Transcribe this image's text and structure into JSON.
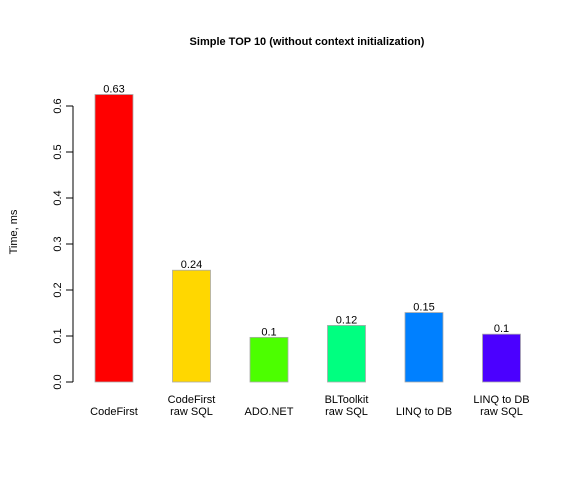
{
  "chart_data": {
    "type": "bar",
    "title": "Simple TOP 10 (without context initialization)",
    "xlabel": "",
    "ylabel": "Time, ms",
    "ylim": [
      0,
      0.65
    ],
    "yticks": [
      0.0,
      0.1,
      0.2,
      0.3,
      0.4,
      0.5,
      0.6
    ],
    "ytick_labels": [
      "0.0",
      "0.1",
      "0.2",
      "0.3",
      "0.4",
      "0.5",
      "0.6"
    ],
    "grid": false,
    "categories": [
      [
        "CodeFirst"
      ],
      [
        "CodeFirst",
        "raw SQL"
      ],
      [
        "ADO.NET"
      ],
      [
        "BLToolkit",
        "raw SQL"
      ],
      [
        "LINQ to DB"
      ],
      [
        "LINQ to DB",
        "raw SQL"
      ]
    ],
    "values": [
      0.625,
      0.243,
      0.097,
      0.123,
      0.151,
      0.104
    ],
    "value_labels": [
      "0.63",
      "0.24",
      "0.1",
      "0.12",
      "0.15",
      "0.1"
    ],
    "colors": [
      "#FF0000",
      "#FFD700",
      "#4CFF00",
      "#00FF80",
      "#0080FF",
      "#4B00FF"
    ]
  }
}
